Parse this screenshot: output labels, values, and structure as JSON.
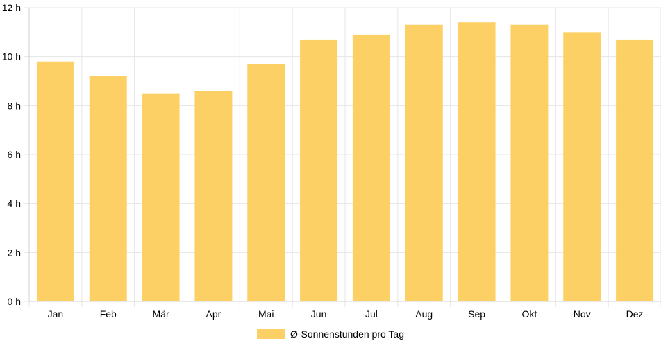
{
  "chart_data": {
    "type": "bar",
    "categories": [
      "Jan",
      "Feb",
      "Mär",
      "Apr",
      "Mai",
      "Jun",
      "Jul",
      "Aug",
      "Sep",
      "Okt",
      "Nov",
      "Dez"
    ],
    "series": [
      {
        "name": "Ø-Sonnenstunden pro Tag",
        "values": [
          9.8,
          9.2,
          8.5,
          8.6,
          9.7,
          10.7,
          10.9,
          11.3,
          11.4,
          11.3,
          11.0,
          10.7
        ],
        "color": "#fdd066"
      }
    ],
    "y_ticks": [
      "0 h",
      "2 h",
      "4 h",
      "6 h",
      "8 h",
      "10 h",
      "12 h"
    ],
    "ylim": [
      0,
      12
    ],
    "grid": true,
    "legend_position": "bottom-center"
  }
}
